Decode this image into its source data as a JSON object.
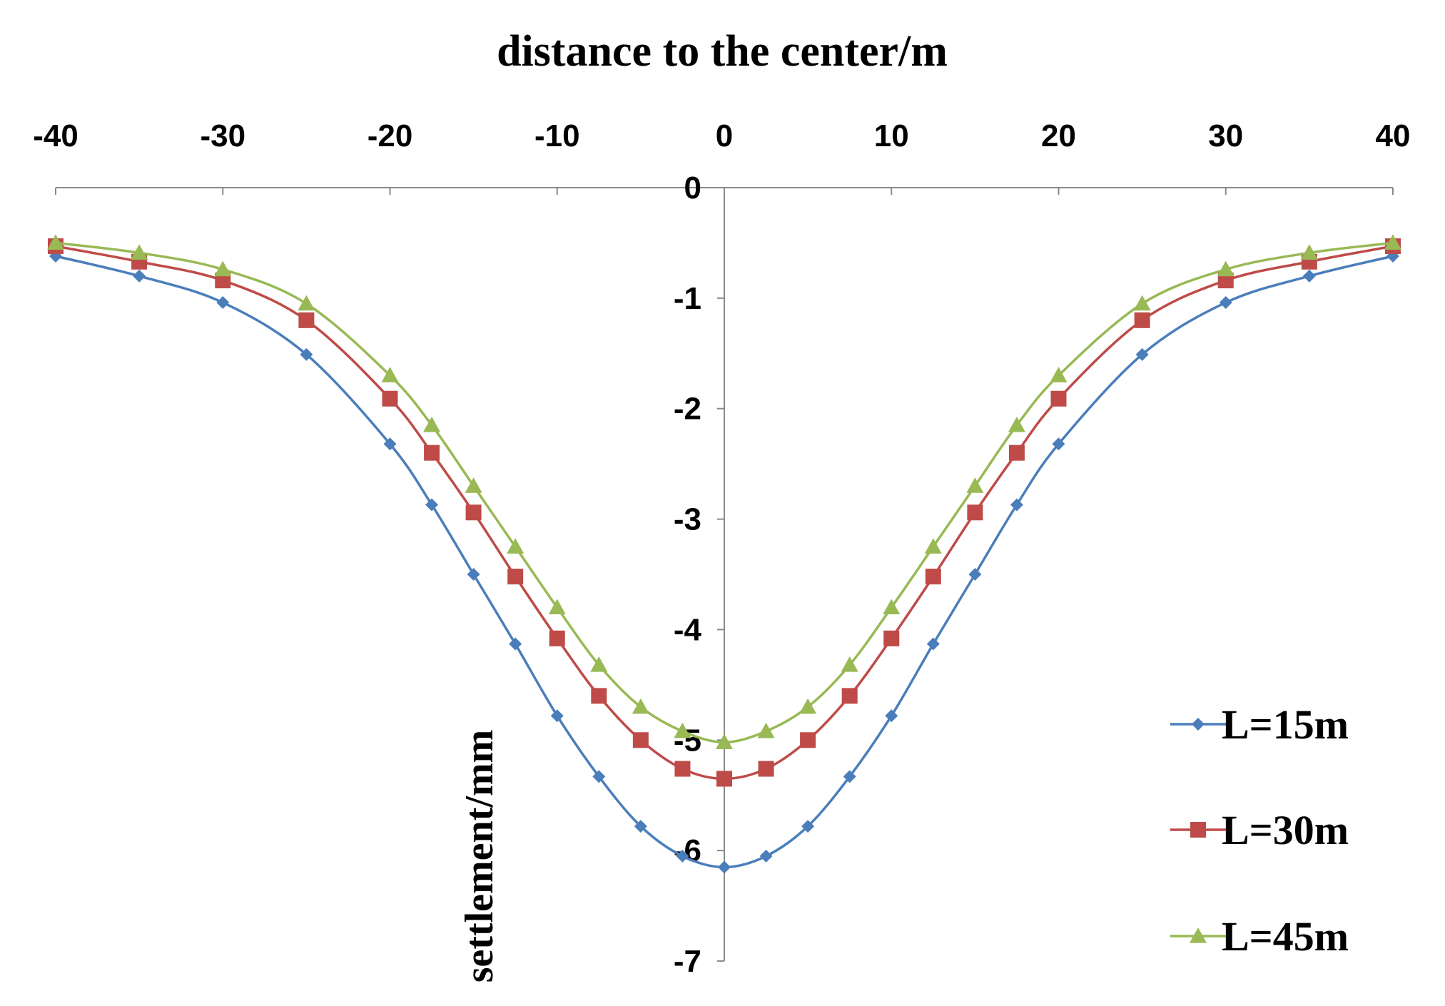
{
  "chart_data": {
    "type": "line",
    "title": "distance to the center/m",
    "xlabel": "distance to the center/m",
    "ylabel": "settlement/mm",
    "xlim": [
      -40,
      40
    ],
    "ylim": [
      -7,
      0
    ],
    "xticks": [
      "-40",
      "-30",
      "-20",
      "-10",
      "0",
      "10",
      "20",
      "30",
      "40"
    ],
    "yticks": [
      "0",
      "-1",
      "-2",
      "-3",
      "-4",
      "-5",
      "-6",
      "-7"
    ],
    "legend_position": "bottom-right",
    "x": [
      -40,
      -35,
      -30,
      -25,
      -20,
      -17.5,
      -15,
      -12.5,
      -10,
      -7.5,
      -5,
      -2.5,
      0,
      2.5,
      5,
      7.5,
      10,
      12.5,
      15,
      17.5,
      20,
      25,
      30,
      35,
      40
    ],
    "series": [
      {
        "name": "L=15m",
        "color": "#4a7ebb",
        "marker": "diamond",
        "values": [
          -0.62,
          -0.8,
          -1.04,
          -1.51,
          -2.32,
          -2.87,
          -3.5,
          -4.13,
          -4.78,
          -5.33,
          -5.78,
          -6.05,
          -6.15,
          -6.05,
          -5.78,
          -5.33,
          -4.78,
          -4.13,
          -3.5,
          -2.87,
          -2.32,
          -1.51,
          -1.04,
          -0.8,
          -0.62
        ]
      },
      {
        "name": "L=30m",
        "color": "#be4b48",
        "marker": "square",
        "values": [
          -0.53,
          -0.67,
          -0.84,
          -1.2,
          -1.91,
          -2.4,
          -2.94,
          -3.52,
          -4.08,
          -4.6,
          -5.0,
          -5.26,
          -5.35,
          -5.26,
          -5.0,
          -4.6,
          -4.08,
          -3.52,
          -2.94,
          -2.4,
          -1.91,
          -1.2,
          -0.84,
          -0.67,
          -0.53
        ]
      },
      {
        "name": "L=45m",
        "color": "#98b954",
        "marker": "triangle",
        "values": [
          -0.5,
          -0.59,
          -0.74,
          -1.05,
          -1.7,
          -2.15,
          -2.7,
          -3.25,
          -3.8,
          -4.32,
          -4.7,
          -4.92,
          -5.02,
          -4.92,
          -4.7,
          -4.32,
          -3.8,
          -3.25,
          -2.7,
          -2.15,
          -1.7,
          -1.05,
          -0.74,
          -0.59,
          -0.5
        ]
      }
    ]
  }
}
